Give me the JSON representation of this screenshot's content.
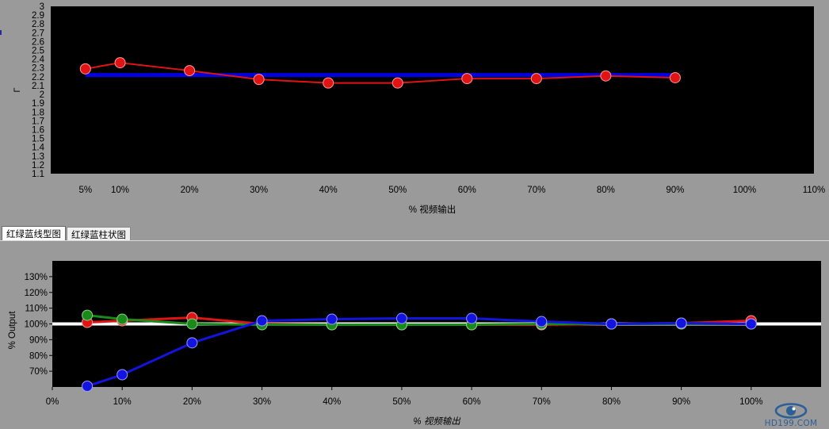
{
  "tabs": [
    {
      "label": "红绿蓝线型图",
      "active": true
    },
    {
      "label": "红绿蓝柱状图",
      "active": false
    }
  ],
  "watermark": {
    "text": "HD199.COM"
  },
  "chart_data": [
    {
      "type": "line",
      "title": "",
      "xlabel": "% 视频输出",
      "ylabel": "Γ",
      "xlim": [
        0,
        110
      ],
      "ylim": [
        1.1,
        3.0
      ],
      "x_ticks": [
        5,
        10,
        20,
        30,
        40,
        50,
        60,
        70,
        80,
        90,
        100,
        110
      ],
      "x_tick_labels": [
        "5%",
        "10%",
        "20%",
        "30%",
        "40%",
        "50%",
        "60%",
        "70%",
        "80%",
        "90%",
        "100%",
        "110%"
      ],
      "y_ticks": [
        1.1,
        1.2,
        1.3,
        1.4,
        1.5,
        1.6,
        1.7,
        1.8,
        1.9,
        2,
        2.1,
        2.2,
        2.3,
        2.4,
        2.5,
        2.6,
        2.7,
        2.8,
        2.9,
        3
      ],
      "y_tick_labels": [
        "1.1",
        "1.2",
        "1.3",
        "1.4",
        "1.5",
        "1.6",
        "1.7",
        "1.8",
        "1.9",
        "2",
        "2.1",
        "2.2",
        "2.3",
        "2.4",
        "2.5",
        "2.6",
        "2.7",
        "2.8",
        "2.9",
        "3"
      ],
      "grid": false,
      "background": "#000000",
      "series": [
        {
          "color": "#0000e0",
          "kind": "reference",
          "x": [
            5,
            90
          ],
          "values": [
            2.22,
            2.22
          ]
        },
        {
          "color": "#e01414",
          "kind": "measured",
          "x": [
            5,
            10,
            20,
            30,
            40,
            50,
            60,
            70,
            80,
            90
          ],
          "values": [
            2.29,
            2.36,
            2.27,
            2.17,
            2.13,
            2.13,
            2.18,
            2.18,
            2.21,
            2.19
          ]
        }
      ]
    },
    {
      "type": "line",
      "title": "",
      "xlabel": "% 视频输出",
      "ylabel": "% Output",
      "xlim": [
        0,
        110
      ],
      "ylim": [
        60,
        140
      ],
      "x_ticks": [
        0,
        10,
        20,
        30,
        40,
        50,
        60,
        70,
        80,
        90,
        100
      ],
      "x_tick_labels": [
        "0%",
        "10%",
        "20%",
        "30%",
        "40%",
        "50%",
        "60%",
        "70%",
        "80%",
        "90%",
        "100%"
      ],
      "y_ticks": [
        70,
        80,
        90,
        100,
        110,
        120,
        130
      ],
      "y_tick_labels": [
        "70%",
        "80%",
        "90%",
        "100%",
        "110%",
        "120%",
        "130%"
      ],
      "reference_line": {
        "y": 100,
        "color": "#ffffff"
      },
      "grid": false,
      "background": "#000000",
      "series": [
        {
          "color": "#e01414",
          "x": [
            5,
            10,
            20,
            30,
            40,
            50,
            60,
            70,
            80,
            90,
            100
          ],
          "values": [
            101,
            102,
            104,
            100,
            99.5,
            99.5,
            99.5,
            99.5,
            100,
            100.5,
            102
          ]
        },
        {
          "color": "#1a8a1a",
          "x": [
            5,
            10,
            20,
            30,
            40,
            50,
            60,
            70,
            80,
            90,
            100
          ],
          "values": [
            105.5,
            103,
            100,
            99.5,
            99.5,
            99.5,
            99.5,
            100,
            100,
            100,
            100
          ]
        },
        {
          "color": "#1414e0",
          "x": [
            5,
            10,
            20,
            30,
            40,
            50,
            60,
            70,
            80,
            90,
            100
          ],
          "values": [
            60.5,
            67.8,
            88,
            102,
            103,
            103.5,
            103.5,
            101.5,
            100,
            100.5,
            100
          ]
        }
      ]
    }
  ]
}
